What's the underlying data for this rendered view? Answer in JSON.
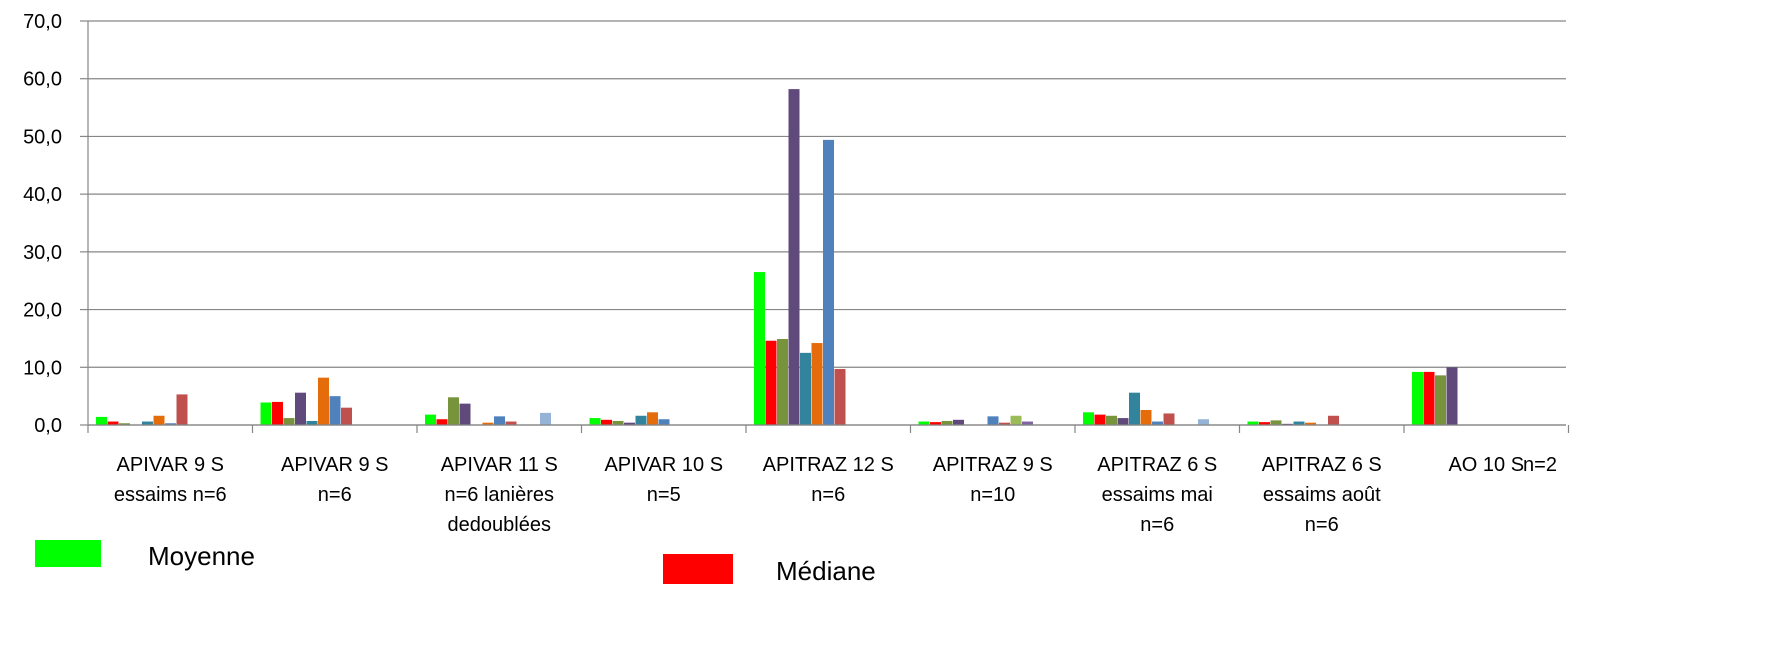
{
  "chart_data": {
    "type": "bar",
    "title": "",
    "xlabel": "",
    "ylabel": "",
    "ylim": [
      0,
      70
    ],
    "yticks": [
      "0,0",
      "10,0",
      "20,0",
      "30,0",
      "40,0",
      "50,0",
      "60,0",
      "70,0"
    ],
    "grid": true,
    "legend_position": "bottom",
    "categories": [
      [
        "APIVAR 9 S",
        "essaims n=6"
      ],
      [
        "APIVAR 9 S",
        "n=6"
      ],
      [
        "APIVAR 11 S",
        "n=6 lanières",
        "dedoublées"
      ],
      [
        "APIVAR 10 S",
        "n=5"
      ],
      [
        "APITRAZ 12 S",
        "n=6"
      ],
      [
        "APITRAZ 9 S",
        "n=10"
      ],
      [
        "APITRAZ 6 S",
        "essaims mai",
        "n=6"
      ],
      [
        "APITRAZ 6 S",
        "essaims août",
        "n=6"
      ],
      [
        "AO 10 S"
      ]
    ],
    "extra_label": "n=2",
    "series": [
      {
        "name": "Moyenne",
        "color": "#00ff00",
        "values": [
          1.4,
          3.9,
          1.8,
          1.2,
          26.5,
          0.6,
          2.2,
          0.6,
          9.2
        ]
      },
      {
        "name": "Médiane",
        "color": "#ff0000",
        "values": [
          0.6,
          4.0,
          1.0,
          0.9,
          14.6,
          0.5,
          1.8,
          0.5,
          9.2
        ]
      },
      {
        "color": "#77933c",
        "values": [
          0.3,
          1.2,
          4.8,
          0.7,
          14.9,
          0.7,
          1.6,
          0.8,
          8.6
        ]
      },
      {
        "color": "#604a7b",
        "values": [
          0.0,
          5.6,
          3.7,
          0.4,
          58.2,
          0.9,
          1.2,
          0.2,
          10.0
        ]
      },
      {
        "color": "#31849b",
        "values": [
          0.6,
          0.7,
          0.0,
          1.6,
          12.5,
          0.0,
          5.6,
          0.6,
          0.0
        ]
      },
      {
        "color": "#e46c0a",
        "values": [
          1.6,
          8.2,
          0.4,
          2.2,
          14.2,
          0.0,
          2.6,
          0.4,
          0.0
        ]
      },
      {
        "color": "#4f81bd",
        "values": [
          0.3,
          5.0,
          1.5,
          1.0,
          49.4,
          1.5,
          0.6,
          0.0,
          0.0
        ]
      },
      {
        "color": "#c0504d",
        "values": [
          5.3,
          3.0,
          0.6,
          0.0,
          9.7,
          0.4,
          2.0,
          1.6,
          0.0
        ]
      },
      {
        "color": "#9bbb59",
        "values": [
          0.0,
          0.0,
          0.0,
          0.0,
          0.0,
          1.6,
          0.0,
          0.0,
          0.0
        ]
      },
      {
        "color": "#8064a2",
        "values": [
          0.0,
          0.0,
          0.0,
          0.0,
          0.0,
          0.6,
          0.0,
          0.0,
          0.0
        ]
      },
      {
        "color": "#95b3d7",
        "values": [
          0.0,
          0.0,
          2.1,
          0.0,
          0.0,
          0.0,
          1.0,
          0.0,
          0.0
        ]
      }
    ]
  }
}
